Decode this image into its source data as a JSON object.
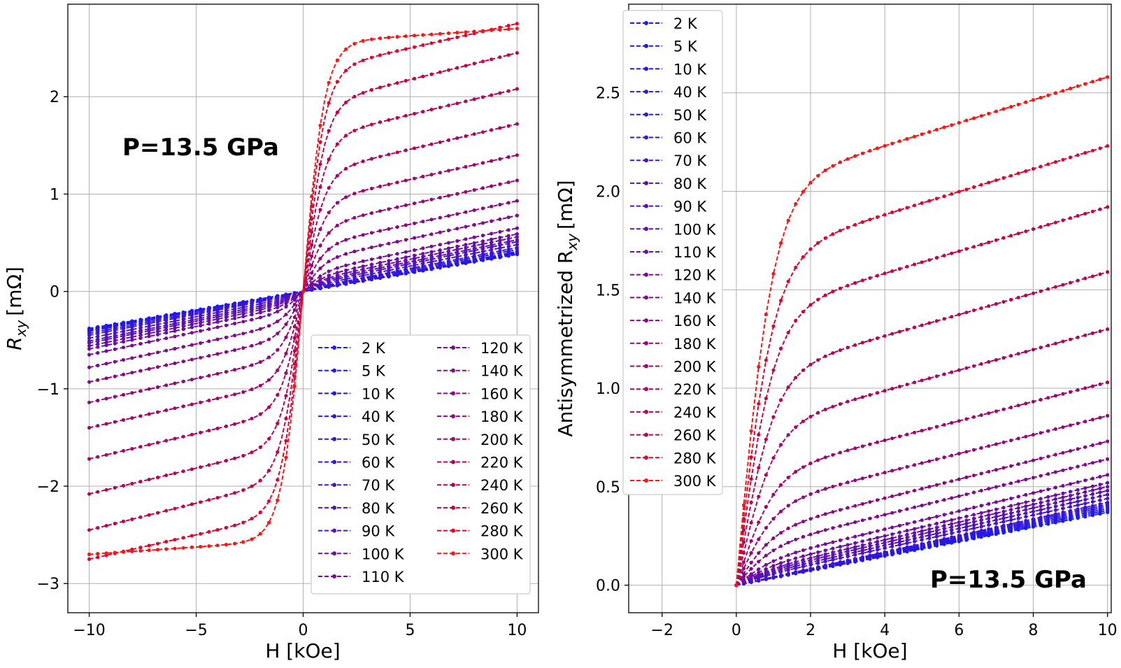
{
  "chart_data": [
    {
      "type": "line",
      "title": "",
      "annotation": "P=13.5 GPa",
      "xlabel": "H [kOe]",
      "ylabel": "R",
      "ylabel_sub": "xy",
      "ylabel_unit": "[mΩ]",
      "xlim": [
        -11,
        11
      ],
      "ylim": [
        -3.3,
        2.95
      ],
      "xticks": [
        -10,
        -5,
        0,
        5,
        10
      ],
      "xtick_labels": [
        "−10",
        "−5",
        "0",
        "5",
        "10"
      ],
      "yticks": [
        -3,
        -2,
        -1,
        0,
        1,
        2
      ],
      "ytick_labels": [
        "−3",
        "−2",
        "−1",
        "0",
        "1",
        "2"
      ],
      "grid": true,
      "legend_location": "lower-right",
      "legend_columns": 2,
      "series": [
        {
          "name": "2 K",
          "color": "#1a1aff",
          "sat": 0.0,
          "slope": 0.038
        },
        {
          "name": "5 K",
          "color": "#1818f8",
          "sat": 0.0,
          "slope": 0.039
        },
        {
          "name": "10 K",
          "color": "#2117f0",
          "sat": 0.0,
          "slope": 0.04
        },
        {
          "name": "40 K",
          "color": "#2a16e8",
          "sat": 0.0,
          "slope": 0.041
        },
        {
          "name": "50 K",
          "color": "#3314df",
          "sat": 0.01,
          "slope": 0.042
        },
        {
          "name": "60 K",
          "color": "#3c13d6",
          "sat": 0.02,
          "slope": 0.043
        },
        {
          "name": "70 K",
          "color": "#4712cc",
          "sat": 0.04,
          "slope": 0.044
        },
        {
          "name": "80 K",
          "color": "#5010c2",
          "sat": 0.06,
          "slope": 0.045
        },
        {
          "name": "90 K",
          "color": "#5a0fb8",
          "sat": 0.08,
          "slope": 0.045
        },
        {
          "name": "100 K",
          "color": "#640ead",
          "sat": 0.1,
          "slope": 0.046
        },
        {
          "name": "110 K",
          "color": "#6e0ca3",
          "sat": 0.13,
          "slope": 0.046
        },
        {
          "name": "120 K",
          "color": "#780b98",
          "sat": 0.18,
          "slope": 0.047
        },
        {
          "name": "140 K",
          "color": "#830a8d",
          "sat": 0.3,
          "slope": 0.048
        },
        {
          "name": "160 K",
          "color": "#8d0982",
          "sat": 0.45,
          "slope": 0.048
        },
        {
          "name": "180 K",
          "color": "#980777",
          "sat": 0.65,
          "slope": 0.049
        },
        {
          "name": "200 K",
          "color": "#a3066b",
          "sat": 0.9,
          "slope": 0.05
        },
        {
          "name": "220 K",
          "color": "#ae0560",
          "sat": 1.2,
          "slope": 0.052
        },
        {
          "name": "240 K",
          "color": "#b90454",
          "sat": 1.55,
          "slope": 0.053
        },
        {
          "name": "260 K",
          "color": "#c50348",
          "sat": 1.9,
          "slope": 0.055
        },
        {
          "name": "280 K",
          "color": "#e0052d",
          "sat": 2.25,
          "slope": 0.05
        },
        {
          "name": "300 K",
          "color": "#ff1414",
          "sat": 2.55,
          "slope": 0.015
        }
      ]
    },
    {
      "type": "line",
      "title": "",
      "annotation": "P=13.5 GPa",
      "xlabel": "H [kOe]",
      "ylabel": "Antisymmetrized R",
      "ylabel_sub": "xy",
      "ylabel_unit": "[mΩ]",
      "xlim": [
        -2.9,
        10.1
      ],
      "ylim": [
        -0.14,
        2.95
      ],
      "xticks": [
        -2,
        0,
        2,
        4,
        6,
        8,
        10
      ],
      "xtick_labels": [
        "−2",
        "0",
        "2",
        "4",
        "6",
        "8",
        "10"
      ],
      "yticks": [
        0.0,
        0.5,
        1.0,
        1.5,
        2.0,
        2.5
      ],
      "ytick_labels": [
        "0.0",
        "0.5",
        "1.0",
        "1.5",
        "2.0",
        "2.5"
      ],
      "grid": true,
      "legend_location": "upper-left",
      "legend_columns": 1,
      "series": [
        {
          "name": "2 K",
          "color": "#1a1aff",
          "sat": 0.0,
          "slope": 0.037
        },
        {
          "name": "5 K",
          "color": "#1818f8",
          "sat": 0.0,
          "slope": 0.038
        },
        {
          "name": "10 K",
          "color": "#2117f0",
          "sat": 0.0,
          "slope": 0.039
        },
        {
          "name": "40 K",
          "color": "#2a16e8",
          "sat": 0.0,
          "slope": 0.04
        },
        {
          "name": "50 K",
          "color": "#3314df",
          "sat": 0.0,
          "slope": 0.041
        },
        {
          "name": "60 K",
          "color": "#3c13d6",
          "sat": 0.0,
          "slope": 0.042
        },
        {
          "name": "70 K",
          "color": "#4712cc",
          "sat": 0.02,
          "slope": 0.042
        },
        {
          "name": "80 K",
          "color": "#5010c2",
          "sat": 0.03,
          "slope": 0.043
        },
        {
          "name": "90 K",
          "color": "#5a0fb8",
          "sat": 0.04,
          "slope": 0.044
        },
        {
          "name": "100 K",
          "color": "#640ead",
          "sat": 0.05,
          "slope": 0.045
        },
        {
          "name": "110 K",
          "color": "#6e0ca3",
          "sat": 0.07,
          "slope": 0.045
        },
        {
          "name": "120 K",
          "color": "#780b98",
          "sat": 0.1,
          "slope": 0.046
        },
        {
          "name": "140 K",
          "color": "#830a8d",
          "sat": 0.17,
          "slope": 0.047
        },
        {
          "name": "160 K",
          "color": "#8d0982",
          "sat": 0.25,
          "slope": 0.048
        },
        {
          "name": "180 K",
          "color": "#980777",
          "sat": 0.38,
          "slope": 0.048
        },
        {
          "name": "200 K",
          "color": "#a3066b",
          "sat": 0.54,
          "slope": 0.049
        },
        {
          "name": "220 K",
          "color": "#ae0560",
          "sat": 0.78,
          "slope": 0.052
        },
        {
          "name": "240 K",
          "color": "#b90454",
          "sat": 1.05,
          "slope": 0.054
        },
        {
          "name": "260 K",
          "color": "#c50348",
          "sat": 1.36,
          "slope": 0.056
        },
        {
          "name": "280 K",
          "color": "#e0052d",
          "sat": 1.65,
          "slope": 0.058
        },
        {
          "name": "300 K",
          "color": "#ff1414",
          "sat": 2.0,
          "slope": 0.058
        }
      ]
    }
  ]
}
